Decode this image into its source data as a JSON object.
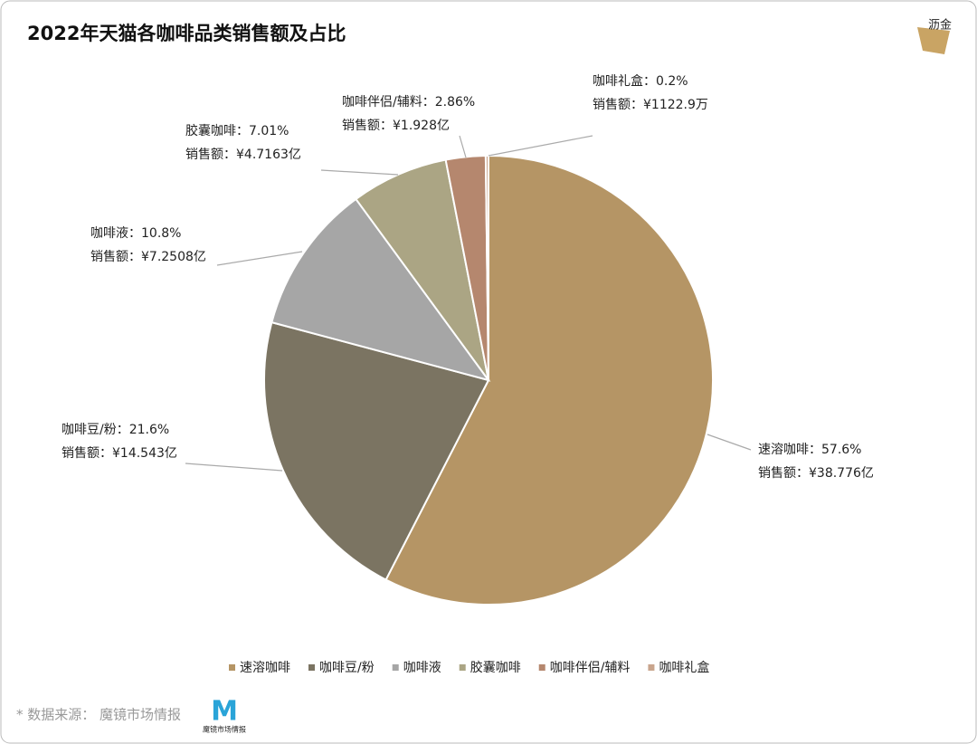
{
  "chart_data": {
    "type": "pie",
    "title": "2022年天猫各咖啡品类销售额及占比",
    "categories": [
      "速溶咖啡",
      "咖啡豆/粉",
      "咖啡液",
      "胶囊咖啡",
      "咖啡伴侣/辅料",
      "咖啡礼盒"
    ],
    "values": [
      57.6,
      21.6,
      10.8,
      7.01,
      2.86,
      0.2
    ],
    "value_labels": [
      "57.6%",
      "21.6%",
      "10.8%",
      "7.01%",
      "2.86%",
      "0.2%"
    ],
    "label_separator": "：",
    "sales_prefix": "销售额：",
    "sales_labels": [
      "¥38.776亿",
      "¥14.543亿",
      "¥7.2508亿",
      "¥4.7163亿",
      "¥1.928亿",
      "¥1122.9万"
    ],
    "colors": [
      "#b59565",
      "#7b7462",
      "#a6a6a6",
      "#aba584",
      "#b5876e",
      "#c9a58d"
    ],
    "legend": "bottom",
    "source": "* 数据来源： 魔镜市场情报",
    "logo_top": "沥金",
    "logo_bottom": "魔镜市场情报"
  }
}
